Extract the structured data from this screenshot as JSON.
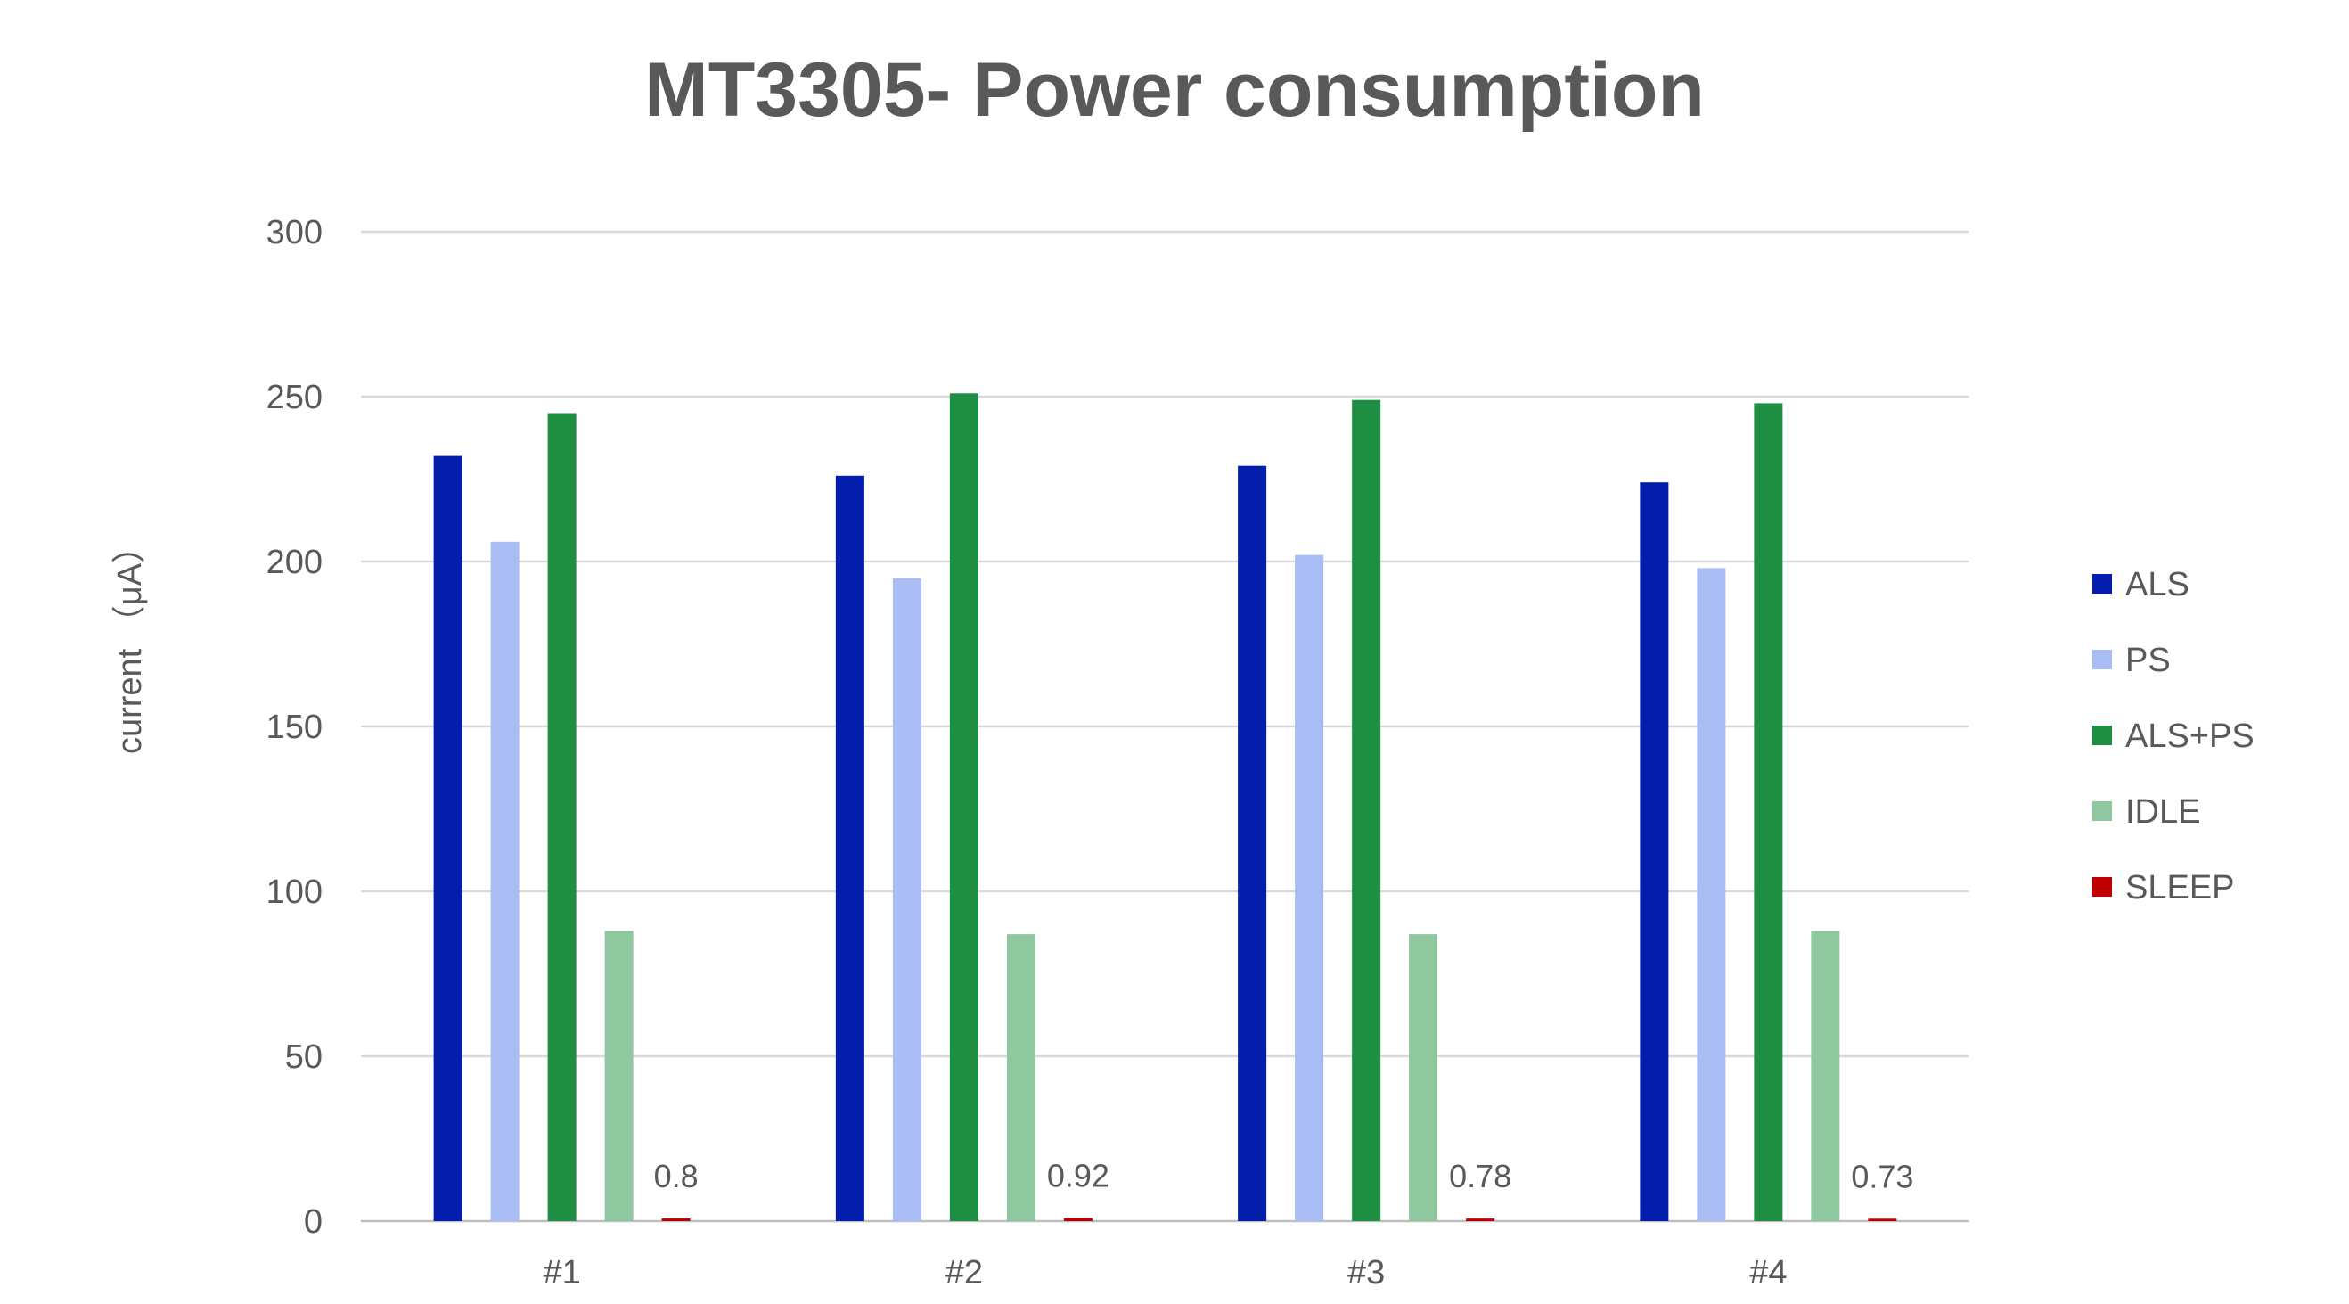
{
  "chart_data": {
    "type": "bar",
    "title": "MT3305- Power consumption",
    "ylabel": "current （μA）",
    "xlabel": "",
    "ylim": [
      0,
      300
    ],
    "yticks": [
      0,
      50,
      100,
      150,
      200,
      250,
      300
    ],
    "grid": true,
    "legend_position": "right",
    "categories": [
      "#1",
      "#2",
      "#3",
      "#4"
    ],
    "series": [
      {
        "name": "ALS",
        "color": "#041DAC",
        "values": [
          232,
          226,
          229,
          224
        ]
      },
      {
        "name": "PS",
        "color": "#AABCF4",
        "values": [
          206,
          195,
          202,
          198
        ]
      },
      {
        "name": "ALS+PS",
        "color": "#1D8E42",
        "values": [
          245,
          251,
          249,
          248
        ]
      },
      {
        "name": "IDLE",
        "color": "#8FC89F",
        "values": [
          88,
          87,
          87,
          88
        ]
      },
      {
        "name": "SLEEP",
        "color": "#C00000",
        "values": [
          0.8,
          0.92,
          0.78,
          0.73
        ],
        "data_labels": [
          "0.8",
          "0.92",
          "0.78",
          "0.73"
        ]
      }
    ]
  }
}
